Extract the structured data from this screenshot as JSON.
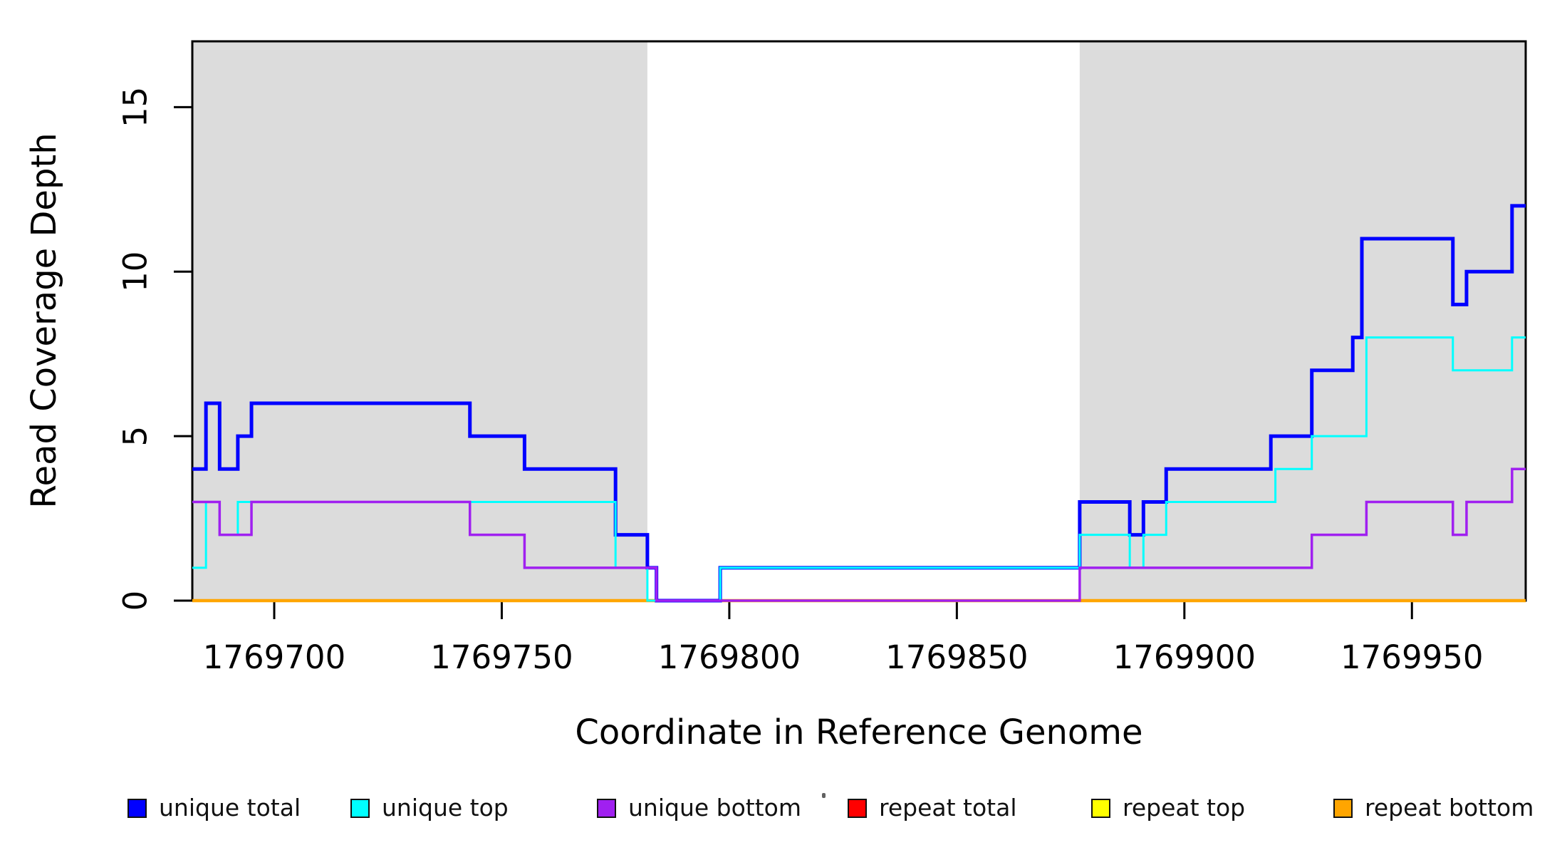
{
  "page": {
    "background": "#FFFFFF"
  },
  "chart_data": {
    "type": "line",
    "step": true,
    "title": "",
    "xlabel": "Coordinate in Reference Genome",
    "ylabel": "Read Coverage Depth",
    "xlim": [
      1769682,
      1769975
    ],
    "ylim": [
      0,
      17
    ],
    "x_ticks": [
      "1769700",
      "1769750",
      "1769800",
      "1769850",
      "1769900",
      "1769950"
    ],
    "x_tick_values": [
      1769700,
      1769750,
      1769800,
      1769850,
      1769900,
      1769950
    ],
    "y_ticks": [
      "0",
      "5",
      "10",
      "15"
    ],
    "y_tick_values": [
      0,
      5,
      10,
      15
    ],
    "grid": false,
    "legend_position": "bottom",
    "plot_background": "#FFFFFF",
    "shaded_regions": [
      {
        "x0": 1769682,
        "x1": 1769782,
        "color": "#DCDCDC"
      },
      {
        "x0": 1769877,
        "x1": 1769975,
        "color": "#DCDCDC"
      }
    ],
    "draw_order": [
      3,
      4,
      5,
      0,
      1,
      2
    ],
    "series": [
      {
        "name": "unique total",
        "color": "#0000FF",
        "line_width": 5,
        "steps": [
          [
            1769682,
            4
          ],
          [
            1769685,
            6
          ],
          [
            1769688,
            4
          ],
          [
            1769692,
            5
          ],
          [
            1769695,
            6
          ],
          [
            1769743,
            5
          ],
          [
            1769755,
            4
          ],
          [
            1769775,
            2
          ],
          [
            1769782,
            1
          ],
          [
            1769784,
            0
          ],
          [
            1769798,
            1
          ],
          [
            1769877,
            3
          ],
          [
            1769888,
            2
          ],
          [
            1769891,
            3
          ],
          [
            1769896,
            4
          ],
          [
            1769919,
            5
          ],
          [
            1769928,
            7
          ],
          [
            1769937,
            8
          ],
          [
            1769939,
            11
          ],
          [
            1769959,
            9
          ],
          [
            1769962,
            10
          ],
          [
            1769972,
            12
          ]
        ]
      },
      {
        "name": "unique top",
        "color": "#00FFFF",
        "line_width": 3,
        "steps": [
          [
            1769682,
            1
          ],
          [
            1769685,
            3
          ],
          [
            1769688,
            2
          ],
          [
            1769692,
            3
          ],
          [
            1769775,
            1
          ],
          [
            1769782,
            0
          ],
          [
            1769798,
            1
          ],
          [
            1769877,
            2
          ],
          [
            1769888,
            1
          ],
          [
            1769891,
            2
          ],
          [
            1769896,
            3
          ],
          [
            1769920,
            4
          ],
          [
            1769928,
            5
          ],
          [
            1769940,
            8
          ],
          [
            1769959,
            7
          ],
          [
            1769972,
            8
          ]
        ]
      },
      {
        "name": "unique bottom",
        "color": "#A020F0",
        "line_width": 3.5,
        "steps": [
          [
            1769682,
            3
          ],
          [
            1769688,
            2
          ],
          [
            1769695,
            3
          ],
          [
            1769743,
            2
          ],
          [
            1769755,
            1
          ],
          [
            1769784,
            0
          ],
          [
            1769877,
            1
          ],
          [
            1769928,
            2
          ],
          [
            1769940,
            3
          ],
          [
            1769959,
            2
          ],
          [
            1769962,
            3
          ],
          [
            1769972,
            4
          ]
        ]
      },
      {
        "name": "repeat total",
        "color": "#FF0000",
        "line_width": 3,
        "steps": [
          [
            1769682,
            0
          ]
        ]
      },
      {
        "name": "repeat top",
        "color": "#FFFF00",
        "line_width": 3.5,
        "steps": [
          [
            1769682,
            0
          ]
        ]
      },
      {
        "name": "repeat bottom",
        "color": "#FFA500",
        "line_width": 4.5,
        "steps": [
          [
            1769682,
            0
          ]
        ]
      }
    ]
  },
  "legend": {
    "items": [
      {
        "label": "unique total",
        "color": "#0000FF"
      },
      {
        "label": "unique top",
        "color": "#00FFFF"
      },
      {
        "label": "unique bottom",
        "color": "#A020F0"
      },
      {
        "label": "repeat total",
        "color": "#FF0000"
      },
      {
        "label": "repeat top",
        "color": "#FFFF00"
      },
      {
        "label": "repeat bottom",
        "color": "#FFA500"
      }
    ]
  }
}
